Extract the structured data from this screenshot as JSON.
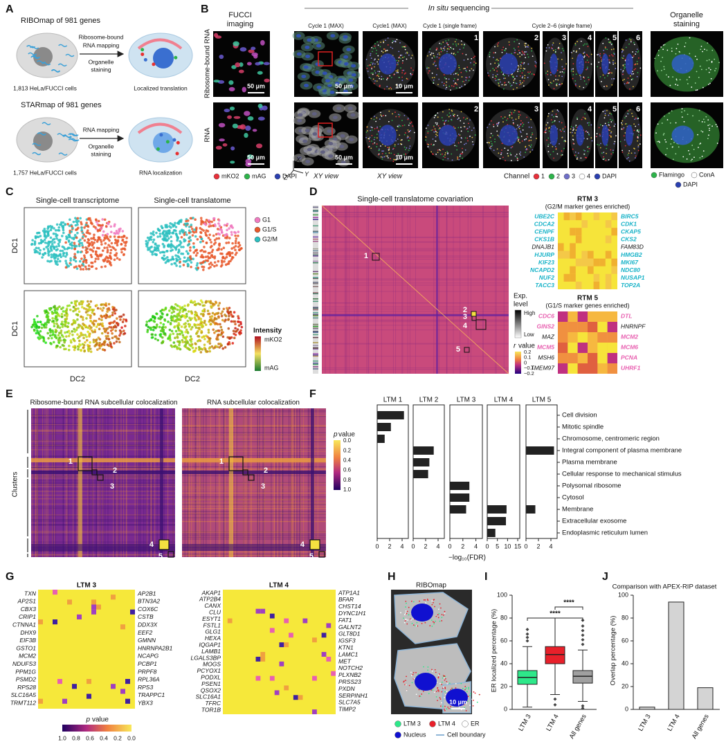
{
  "panels": {
    "A": {
      "label": "A",
      "ribomap": {
        "title": "RIBOmap of 981 genes",
        "mapping": [
          "Ribosome-bound",
          "RNA mapping"
        ],
        "staining": [
          "Organelle",
          "staining"
        ],
        "cells": "1,813 HeLa/FUCCI cells",
        "result": "Localized translation"
      },
      "starmap": {
        "title": "STARmap of 981 genes",
        "mapping": [
          "RNA mapping"
        ],
        "staining": [
          "Organelle",
          "staining"
        ],
        "cells": "1,757 HeLa/FUCCI cells",
        "result": "RNA localization"
      }
    },
    "B": {
      "label": "B",
      "fucci": [
        "FUCCI",
        "imaging"
      ],
      "insitu": [
        "In situ",
        "sequencing"
      ],
      "organelle": [
        "Organelle",
        "staining"
      ],
      "rows": [
        "Ribosome-bound RNA",
        "RNA"
      ],
      "columns": [
        "Cycle 1 (MAX)",
        "Cycle1 (MAX)",
        "Cycle 1 (single frame)",
        "Cycle 2–6 (single frame)"
      ],
      "scale_bars": [
        [
          "50 µm",
          "50 µm",
          "10 µm"
        ],
        [
          "50 µm",
          "50 µm",
          "10 µm"
        ]
      ],
      "cycle_numbers": [
        [
          "1",
          "2",
          "3",
          "4",
          "5",
          "6"
        ],
        [
          "2",
          "3",
          "4",
          "5",
          "6"
        ]
      ],
      "axes": [
        "X",
        "Y",
        "Z"
      ],
      "views": [
        "XY view",
        "XY view"
      ],
      "fucci_legend": [
        {
          "name": "mKO2",
          "color": "#e8303a"
        },
        {
          "name": "mAG",
          "color": "#2db34a"
        },
        {
          "name": "DAPI",
          "color": "#2a3fb0"
        }
      ],
      "channel_title": "Channel",
      "channel_legend": [
        {
          "name": "1",
          "color": "#e8303a"
        },
        {
          "name": "2",
          "color": "#2db34a"
        },
        {
          "name": "3",
          "color": "#6f6fc8"
        },
        {
          "name": "4",
          "color": "#ffffff"
        },
        {
          "name": "DAPI",
          "color": "#2a3fb0"
        }
      ],
      "organelle_legend": [
        {
          "name": "Flamingo",
          "color": "#2db34a"
        },
        {
          "name": "ConA",
          "color": "#ffffff"
        },
        {
          "name": "DAPI",
          "color": "#2a3fb0"
        }
      ]
    },
    "C": {
      "label": "C",
      "titles": [
        "Single-cell transcriptome",
        "Single-cell translatome"
      ],
      "y_labels": [
        "DC1",
        "DC1"
      ],
      "x_labels": [
        "DC2",
        "DC2"
      ],
      "legend": [
        {
          "name": "G1",
          "color": "#f07ac0"
        },
        {
          "name": "G1/S",
          "color": "#e8582a"
        },
        {
          "name": "G2/M",
          "color": "#2bbfc0"
        }
      ],
      "intensity": {
        "title": "Intensity",
        "high": "mKO2",
        "low": "mAG"
      }
    },
    "D": {
      "label": "D",
      "title": "Single-cell translatome covariation",
      "modules": [
        "1",
        "2",
        "3",
        "4",
        "5"
      ],
      "exp_level": {
        "title": [
          "Exp.",
          "level"
        ],
        "high": "High",
        "low": "Low"
      },
      "r_value": {
        "title": [
          "r",
          "value"
        ],
        "ticks": [
          "0.2",
          "0.1",
          "0",
          "−0.1",
          "−0.2"
        ]
      },
      "rtm3": {
        "title": "RTM 3",
        "subtitle": "(G2/M marker genes enriched)",
        "left": [
          {
            "name": "UBE2C",
            "color": "#19b3c8"
          },
          {
            "name": "CDCA2",
            "color": "#19b3c8"
          },
          {
            "name": "CENPF",
            "color": "#19b3c8"
          },
          {
            "name": "CKS1B",
            "color": "#19b3c8"
          },
          {
            "name": "DNAJB1",
            "color": "#111111"
          },
          {
            "name": "HJURP",
            "color": "#19b3c8"
          },
          {
            "name": "KIF23",
            "color": "#19b3c8"
          },
          {
            "name": "NCAPD2",
            "color": "#19b3c8"
          },
          {
            "name": "NUF2",
            "color": "#19b3c8"
          },
          {
            "name": "TACC3",
            "color": "#19b3c8"
          }
        ],
        "right": [
          {
            "name": "BIRC5",
            "color": "#19b3c8"
          },
          {
            "name": "CDK1",
            "color": "#19b3c8"
          },
          {
            "name": "CKAP5",
            "color": "#19b3c8"
          },
          {
            "name": "CKS2",
            "color": "#19b3c8"
          },
          {
            "name": "FAM83D",
            "color": "#111111"
          },
          {
            "name": "HMGB2",
            "color": "#19b3c8"
          },
          {
            "name": "MKI67",
            "color": "#19b3c8"
          },
          {
            "name": "NDC80",
            "color": "#19b3c8"
          },
          {
            "name": "NUSAP1",
            "color": "#19b3c8"
          },
          {
            "name": "TOP2A",
            "color": "#19b3c8"
          }
        ]
      },
      "rtm5": {
        "title": "RTM 5",
        "subtitle": "(G1/S marker genes enriched)",
        "left": [
          {
            "name": "CDC6",
            "color": "#e860b0"
          },
          {
            "name": "GINS2",
            "color": "#e860b0"
          },
          {
            "name": "MAZ",
            "color": "#111111"
          },
          {
            "name": "MCM5",
            "color": "#e860b0"
          },
          {
            "name": "MSH6",
            "color": "#111111"
          },
          {
            "name": "TMEM97",
            "color": "#111111"
          }
        ],
        "right": [
          {
            "name": "DTL",
            "color": "#e860b0"
          },
          {
            "name": "HNRNPF",
            "color": "#111111"
          },
          {
            "name": "MCM2",
            "color": "#e860b0"
          },
          {
            "name": "MCM6",
            "color": "#e860b0"
          },
          {
            "name": "PCNA",
            "color": "#e860b0"
          },
          {
            "name": "UHRF1",
            "color": "#e860b0"
          }
        ]
      }
    },
    "E": {
      "label": "E",
      "titles": [
        "Ribosome-bound RNA subcellular colocalization",
        "RNA subcellular colocalization"
      ],
      "y_label": "Clusters",
      "modules": [
        [
          "1",
          "2",
          "3",
          "4",
          "5"
        ],
        [
          "1",
          "2",
          "3",
          "4",
          "5"
        ]
      ],
      "colorbar": {
        "title": [
          "p",
          "value"
        ],
        "ticks": [
          "0.0",
          "0.2",
          "0.4",
          "0.6",
          "0.8",
          "1.0"
        ]
      }
    },
    "G": {
      "label": "G",
      "ltm3": {
        "title": "LTM 3",
        "left": [
          "TXN",
          "AP2S1",
          "CBX3",
          "CRIP1",
          "CTNNA1",
          "DHX9",
          "EIF3B",
          "GSTO1",
          "MCM2",
          "NDUFS3",
          "PPM1G",
          "PSMD2",
          "RPS28",
          "SLC16A5",
          "TRMT112"
        ],
        "right": [
          "AP2B1",
          "BTN3A2",
          "COX6C",
          "CSTB",
          "DDX3X",
          "EEF2",
          "GMNN",
          "HNRNPA2B1",
          "NCAPG",
          "PCBP1",
          "PRPF8",
          "RPL36A",
          "RPS3",
          "TRAPPC1",
          "YBX3"
        ]
      },
      "ltm4": {
        "title": "LTM 4",
        "left": [
          "AKAP1",
          "ATP2B4",
          "CANX",
          "CLU",
          "ESYT1",
          "FSTL1",
          "GLG1",
          "HEXA",
          "IQGAP1",
          "LAMB1",
          "LGALS3BP",
          "MOGS",
          "PCYOX1",
          "PODXL",
          "PSEN1",
          "QSOX2",
          "SLC16A1",
          "TFRC",
          "TOR1B"
        ],
        "right": [
          "ATP1A1",
          "BFAR",
          "CHST14",
          "DYNC1H1",
          "FAT1",
          "GALNT2",
          "GLT8D1",
          "IGSF3",
          "KTN1",
          "LAMC1",
          "MET",
          "NOTCH2",
          "PLXNB2",
          "PRSS23",
          "PXDN",
          "SERPINH1",
          "SLC7A5",
          "TIMP2"
        ]
      },
      "colorbar": {
        "title": [
          "p",
          "value"
        ],
        "ticks": [
          "1.0",
          "0.8",
          "0.6",
          "0.4",
          "0.2",
          "0.0"
        ]
      }
    },
    "H": {
      "label": "H",
      "title": "RIBOmap",
      "scale_bar": "10 µm",
      "legend": [
        {
          "name": "LTM 3",
          "color": "#2ee88a"
        },
        {
          "name": "LTM 4",
          "color": "#e8202a"
        },
        {
          "name": "ER",
          "color": "#ffffff"
        },
        {
          "name": "Nucleus",
          "color": "#1010d0"
        },
        {
          "name": "Cell boundary",
          "color": "#8fb6d8"
        }
      ]
    }
  },
  "chart_data": [
    {
      "type": "faceted-hbar",
      "panel_label": "F",
      "xlabel": "−log₁₀(FDR)",
      "color": "#222222",
      "categories": [
        "Cell division",
        "Mitotic spindle",
        "Chromosome, centromeric region",
        "Integral component of plasma membrane",
        "Plasma membrane",
        "Cellular response to mechanical stimulus",
        "Polysomal ribosome",
        "Cytosol",
        "Membrane",
        "Extracellular exosome",
        "Endoplasmic reticulum lumen"
      ],
      "series": [
        {
          "name": "LTM 1",
          "values": [
            4.3,
            2.2,
            1.2,
            null,
            null,
            null,
            null,
            null,
            null,
            null,
            null
          ],
          "xlim": [
            0,
            5
          ],
          "xticks": [
            0,
            2,
            4
          ]
        },
        {
          "name": "LTM 2",
          "values": [
            null,
            null,
            null,
            3.3,
            2.6,
            2.4,
            null,
            null,
            null,
            null,
            null
          ],
          "xlim": [
            0,
            5
          ],
          "xticks": [
            0,
            2,
            4
          ]
        },
        {
          "name": "LTM 3",
          "values": [
            null,
            null,
            null,
            null,
            null,
            null,
            3.0,
            3.0,
            2.5,
            null,
            null
          ],
          "xlim": [
            0,
            5
          ],
          "xticks": [
            0,
            2,
            4
          ]
        },
        {
          "name": "LTM 4",
          "values": [
            null,
            null,
            null,
            null,
            null,
            null,
            null,
            null,
            9.5,
            9.2,
            4.0
          ],
          "xlim": [
            0,
            16
          ],
          "xticks": [
            0,
            5,
            10,
            15
          ]
        },
        {
          "name": "LTM 5",
          "values": [
            null,
            null,
            null,
            4.5,
            null,
            null,
            null,
            null,
            1.5,
            null,
            null
          ],
          "xlim": [
            0,
            5
          ],
          "xticks": [
            0,
            2,
            4
          ]
        }
      ]
    },
    {
      "type": "box",
      "panel_label": "I",
      "ylabel": "ER localized percentage (%)",
      "categories": [
        "LTM 3",
        "LTM 4",
        "All genes"
      ],
      "ylim": [
        0,
        100
      ],
      "yticks": [
        0,
        20,
        40,
        60,
        80,
        100
      ],
      "significance": [
        "****",
        "****"
      ],
      "boxes": [
        {
          "color": "#2ee88a",
          "whisker_low": 2,
          "q1": 22,
          "median": 28,
          "q3": 34,
          "whisker_high": 55,
          "outliers": [
            60,
            63,
            66,
            70
          ]
        },
        {
          "color": "#e8202a",
          "whisker_low": 13,
          "q1": 40,
          "median": 48,
          "q3": 55,
          "whisker_high": 80,
          "outliers": [
            9,
            4
          ]
        },
        {
          "color": "#a0a0a0",
          "whisker_low": 7,
          "q1": 23,
          "median": 29,
          "q3": 34,
          "whisker_high": 52,
          "outliers": [
            57,
            61,
            65,
            69,
            73,
            78,
            3,
            1
          ]
        }
      ]
    },
    {
      "type": "bar",
      "panel_label": "J",
      "title": "Comparison with APEX-RIP dataset",
      "ylabel": "Overlap percentage (%)",
      "categories": [
        "LTM 3",
        "LTM 4",
        "All genes"
      ],
      "values": [
        2,
        94,
        19
      ],
      "color": "#d4d4d4",
      "ylim": [
        0,
        100
      ],
      "yticks": [
        0,
        20,
        40,
        60,
        80,
        100
      ]
    }
  ]
}
